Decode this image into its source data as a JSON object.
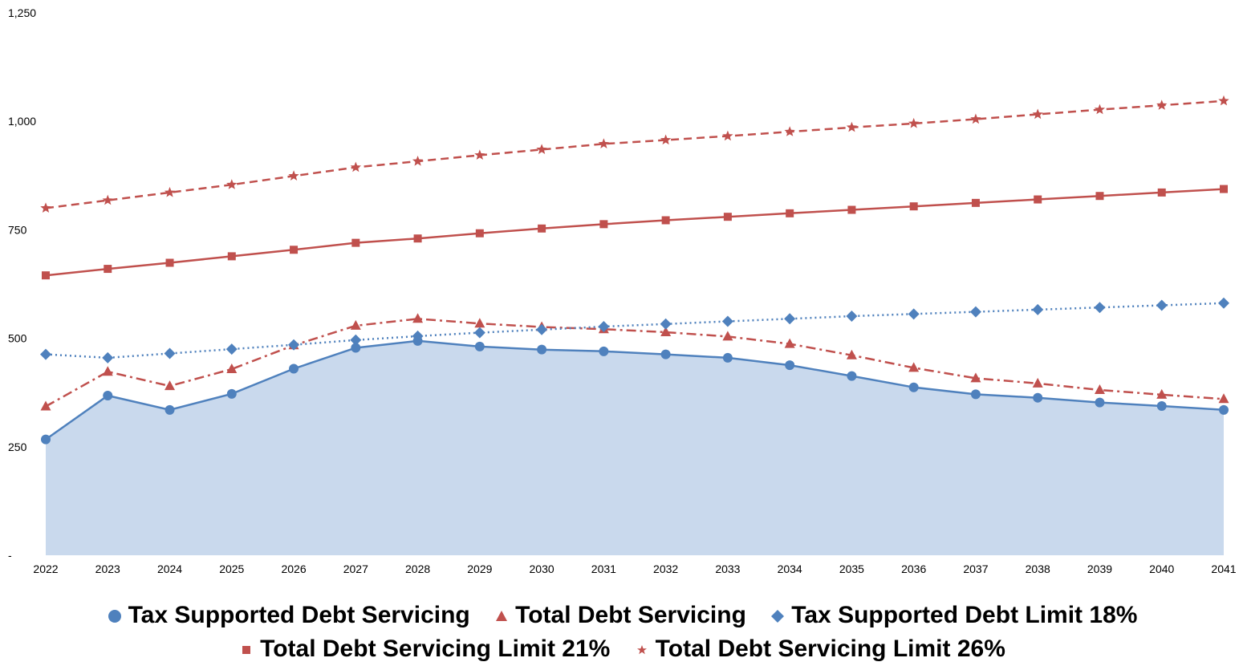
{
  "chart_data": {
    "type": "line",
    "x": [
      2022,
      2023,
      2024,
      2025,
      2026,
      2027,
      2028,
      2029,
      2030,
      2031,
      2032,
      2033,
      2034,
      2035,
      2036,
      2037,
      2038,
      2039,
      2040,
      2041
    ],
    "x_tick_labels": [
      "2022",
      "2023",
      "2024",
      "2025",
      "2026",
      "2027",
      "2028",
      "2029",
      "2030",
      "2031",
      "2032",
      "2033",
      "2034",
      "2035",
      "2036",
      "2037",
      "2038",
      "2039",
      "2040",
      "2041"
    ],
    "ylim": [
      0,
      1250
    ],
    "y_ticks": [
      0,
      250,
      500,
      750,
      1000,
      1250
    ],
    "y_tick_labels": [
      "-",
      "250",
      "500",
      "750",
      "1,000",
      "1,250"
    ],
    "grid": false,
    "legend_position": "bottom",
    "series": [
      {
        "name": "Tax Supported Debt Servicing",
        "style": "solid-area",
        "marker": "circle",
        "color": "#4f81bd",
        "fill": "#c9d9ed",
        "values": [
          267,
          368,
          335,
          372,
          430,
          478,
          494,
          481,
          474,
          470,
          463,
          455,
          438,
          413,
          387,
          371,
          363,
          352,
          344,
          335
        ]
      },
      {
        "name": "Total Debt Servicing",
        "style": "dash-dot",
        "marker": "triangle",
        "color": "#c0504d",
        "values": [
          343,
          423,
          390,
          429,
          484,
          529,
          545,
          534,
          526,
          521,
          514,
          504,
          487,
          461,
          432,
          408,
          396,
          381,
          370,
          360
        ]
      },
      {
        "name": "Tax Supported Debt Limit 18%",
        "style": "dotted",
        "marker": "diamond",
        "color": "#4f81bd",
        "values": [
          463,
          455,
          465,
          475,
          485,
          496,
          505,
          513,
          520,
          527,
          533,
          539,
          545,
          551,
          556,
          561,
          566,
          571,
          576,
          581
        ]
      },
      {
        "name": "Total Debt Servicing Limit 21%",
        "style": "solid",
        "marker": "square",
        "color": "#c0504d",
        "values": [
          645,
          660,
          674,
          689,
          704,
          720,
          730,
          742,
          753,
          763,
          772,
          780,
          788,
          796,
          804,
          812,
          820,
          828,
          836,
          844
        ]
      },
      {
        "name": "Total Debt Servicing Limit 26%",
        "style": "dashed",
        "marker": "star",
        "color": "#c0504d",
        "values": [
          800,
          818,
          836,
          854,
          874,
          894,
          908,
          922,
          935,
          948,
          957,
          966,
          976,
          986,
          995,
          1005,
          1016,
          1027,
          1037,
          1047
        ]
      }
    ]
  }
}
